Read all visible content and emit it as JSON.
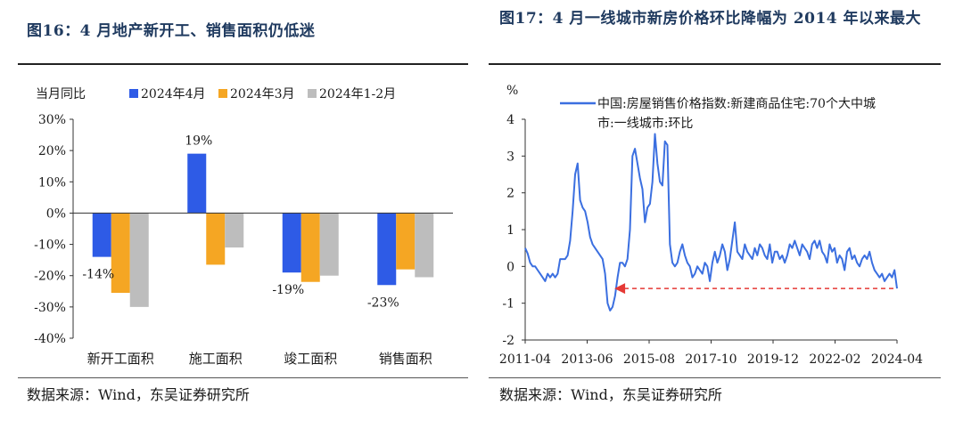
{
  "left": {
    "title": "图16：4 月地产新开工、销售面积仍低迷",
    "source": "数据来源：Wind，东吴证券研究所"
  },
  "right": {
    "title": "图17：4 月一线城市新房价格环比降幅为 2014 年以来最大",
    "source": "数据来源：Wind，东吴证券研究所"
  },
  "chart_data": [
    {
      "type": "bar",
      "ylabel": "当月同比",
      "ylim": [
        -40,
        30
      ],
      "yticks": [
        "30%",
        "20%",
        "10%",
        "0%",
        "-10%",
        "-20%",
        "-30%",
        "-40%"
      ],
      "categories": [
        "新开工面积",
        "施工面积",
        "竣工面积",
        "销售面积"
      ],
      "series": [
        {
          "name": "2024年4月",
          "color": "#2e5be6",
          "values": [
            -14,
            19,
            -19,
            -23
          ]
        },
        {
          "name": "2024年3月",
          "color": "#f5a623",
          "values": [
            -25.5,
            -16.5,
            -22,
            -18
          ]
        },
        {
          "name": "2024年1-2月",
          "color": "#bdbdbd",
          "values": [
            -30,
            -11,
            -20,
            -20.5
          ]
        }
      ],
      "data_labels": [
        "-14%",
        "19%",
        "-19%",
        "-23%"
      ],
      "legend": "top"
    },
    {
      "type": "line",
      "ylabel": "%",
      "ylim": [
        -2,
        4
      ],
      "yticks": [
        "4",
        "3",
        "2",
        "1",
        "0",
        "-1",
        "-2"
      ],
      "xticks": [
        "2011-04",
        "2013-06",
        "2015-08",
        "2017-10",
        "2019-12",
        "2022-02",
        "2024-04"
      ],
      "series": [
        {
          "name": "中国:房屋销售价格指数:新建商品住宅:70个大中城市:一线城市:环比",
          "color": "#3b6fe0",
          "values": [
            0.5,
            0.35,
            0.1,
            0,
            0,
            -0.1,
            -0.2,
            -0.3,
            -0.4,
            -0.2,
            -0.3,
            -0.2,
            -0.3,
            -0.2,
            0.2,
            0.2,
            0.2,
            0.3,
            0.7,
            1.5,
            2.5,
            2.8,
            1.8,
            1.6,
            1.5,
            1.2,
            0.8,
            0.6,
            0.5,
            0.4,
            0.3,
            0.2,
            -0.2,
            -1,
            -1.2,
            -1.1,
            -0.8,
            -0.3,
            0.1,
            0.1,
            0,
            0.2,
            1,
            3,
            3.2,
            2.8,
            2.4,
            2.1,
            1.2,
            1.6,
            1.7,
            2.3,
            3.6,
            2.8,
            2.3,
            2.2,
            3.4,
            3.3,
            0.6,
            0.1,
            0,
            0.1,
            0.4,
            0.6,
            0.3,
            0.1,
            0,
            -0.3,
            -0.2,
            0,
            -0.1,
            -0.2,
            0.1,
            0,
            -0.4,
            0.1,
            0.4,
            0.1,
            0.3,
            0.6,
            0.4,
            -0.1,
            0.2,
            0.7,
            1.2,
            0.4,
            0.3,
            0.2,
            0.6,
            0.4,
            0.3,
            0.2,
            0.5,
            0.3,
            0.6,
            0.5,
            0.3,
            0.2,
            0.6,
            0.1,
            0.4,
            0.4,
            0.2,
            0.3,
            0.1,
            0.3,
            0.6,
            0.5,
            0.7,
            0.5,
            0.3,
            0.6,
            0.5,
            0.4,
            0.2,
            0.6,
            0.7,
            0.5,
            0.7,
            0.4,
            0.3,
            0.1,
            0.6,
            0.4,
            0.5,
            0.1,
            0.3,
            0.2,
            -0.1,
            0.4,
            0.5,
            0.2,
            0.3,
            0.1,
            0,
            0.2,
            0.3,
            0.2,
            0.4,
            0.1,
            -0.1,
            -0.2,
            -0.3,
            -0.2,
            -0.4,
            -0.3,
            -0.2,
            -0.3,
            -0.1,
            -0.6
          ]
        }
      ],
      "annotation": "arrow"
    }
  ]
}
